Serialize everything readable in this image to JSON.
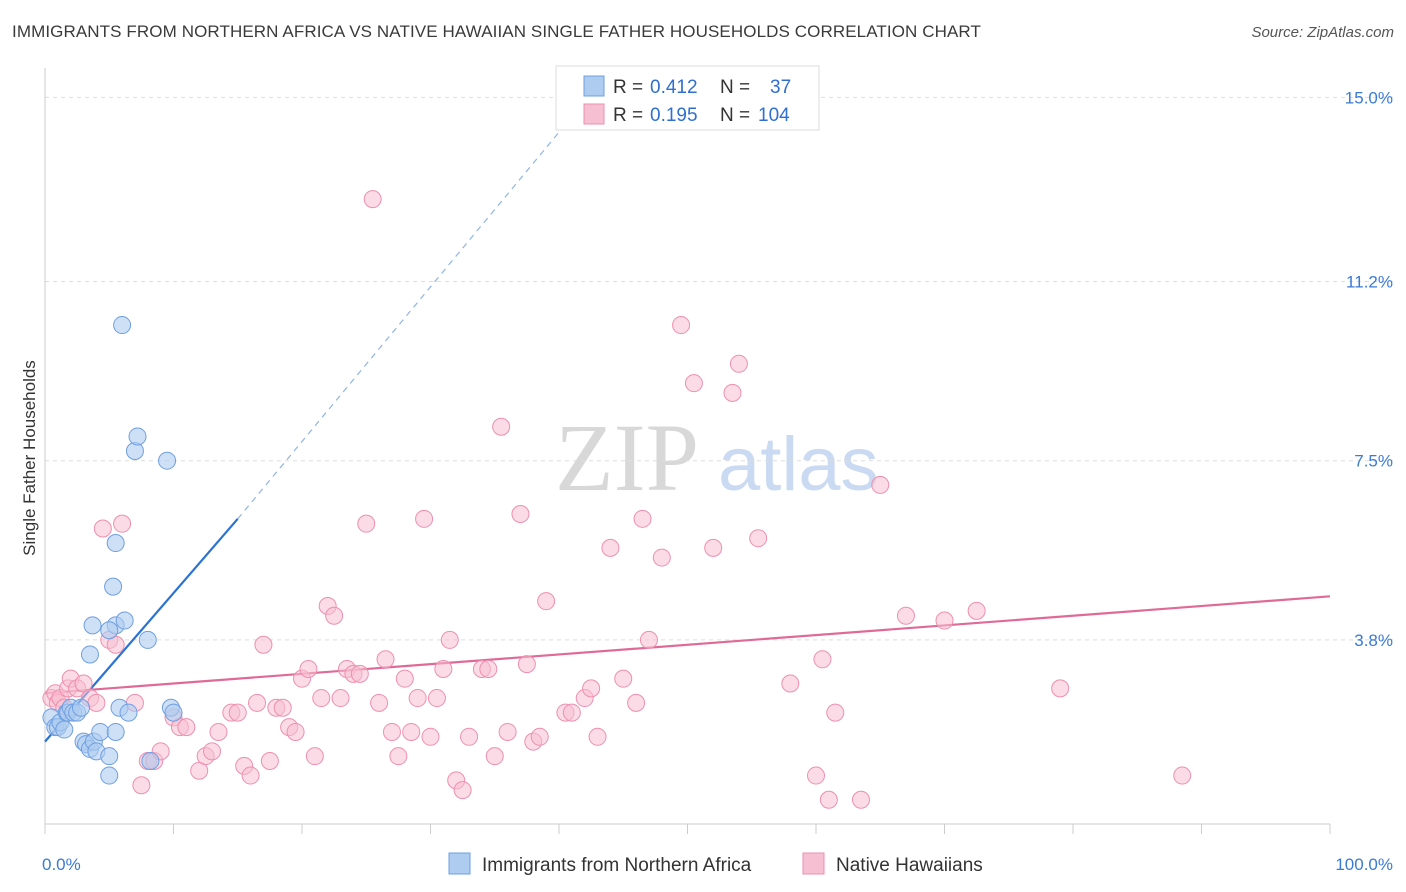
{
  "title": "IMMIGRANTS FROM NORTHERN AFRICA VS NATIVE HAWAIIAN SINGLE FATHER HOUSEHOLDS CORRELATION CHART",
  "source": "Source: ZipAtlas.com",
  "watermark": {
    "zip": "ZIP",
    "atlas": "atlas"
  },
  "colors": {
    "blue_fill": "#aecbf0",
    "blue_stroke": "#6f9fe0",
    "blue_line": "#2a72d4",
    "pink_fill": "#f7bfd2",
    "pink_stroke": "#ee8fb0",
    "pink_line": "#e06a96",
    "grid": "#dddddd",
    "label": "#3a7bd5"
  },
  "legend": {
    "series1": {
      "r_label": "R =",
      "r_value": "0.412",
      "n_label": "N =",
      "n_value": "37"
    },
    "series2": {
      "r_label": "R =",
      "r_value": "0.195",
      "n_label": "N =",
      "n_value": "104"
    }
  },
  "chart_data": {
    "type": "scatter",
    "title": "IMMIGRANTS FROM NORTHERN AFRICA VS NATIVE HAWAIIAN SINGLE FATHER HOUSEHOLDS CORRELATION CHART",
    "xlabel": "",
    "ylabel": "Single Father Households",
    "xlim": [
      0,
      100
    ],
    "ylim": [
      0,
      15.4
    ],
    "x_tick_labels": [
      "0.0%",
      "100.0%"
    ],
    "y_ticks": [
      3.8,
      7.5,
      11.2,
      15.0
    ],
    "y_tick_labels": [
      "3.8%",
      "7.5%",
      "11.2%",
      "15.0%"
    ],
    "series": [
      {
        "name": "Immigrants from Northern Africa",
        "color": "blue",
        "R": 0.412,
        "N": 37,
        "trend": {
          "x0": 0,
          "y0": 1.7,
          "x1": 15,
          "y1": 6.3,
          "dash_to_x": 41,
          "dash_to_y": 14.6
        },
        "points": [
          [
            0.5,
            2.2
          ],
          [
            0.8,
            2.0
          ],
          [
            1.0,
            2.0
          ],
          [
            1.2,
            2.1
          ],
          [
            1.5,
            1.95
          ],
          [
            1.7,
            2.3
          ],
          [
            1.8,
            2.3
          ],
          [
            2.0,
            2.4
          ],
          [
            2.2,
            2.3
          ],
          [
            2.5,
            2.3
          ],
          [
            2.8,
            2.4
          ],
          [
            3.0,
            1.7
          ],
          [
            3.2,
            1.65
          ],
          [
            3.5,
            1.55
          ],
          [
            3.8,
            1.7
          ],
          [
            4.0,
            1.5
          ],
          [
            3.5,
            3.5
          ],
          [
            3.7,
            4.1
          ],
          [
            4.3,
            1.9
          ],
          [
            5.0,
            1.4
          ],
          [
            5.0,
            1.0
          ],
          [
            5.5,
            4.1
          ],
          [
            5.0,
            4.0
          ],
          [
            5.3,
            4.9
          ],
          [
            5.5,
            1.9
          ],
          [
            5.5,
            5.8
          ],
          [
            5.8,
            2.4
          ],
          [
            6.0,
            10.3
          ],
          [
            6.2,
            4.2
          ],
          [
            6.5,
            2.3
          ],
          [
            7.0,
            7.7
          ],
          [
            7.2,
            8.0
          ],
          [
            8.0,
            3.8
          ],
          [
            8.2,
            1.3
          ],
          [
            9.5,
            7.5
          ],
          [
            9.8,
            2.4
          ],
          [
            10.0,
            2.3
          ]
        ]
      },
      {
        "name": "Native Hawaiians",
        "color": "pink",
        "R": 0.195,
        "N": 104,
        "trend": {
          "x0": 0,
          "y0": 2.7,
          "x1": 100,
          "y1": 4.7
        },
        "points": [
          [
            0.5,
            2.6
          ],
          [
            0.8,
            2.7
          ],
          [
            1.0,
            2.5
          ],
          [
            1.2,
            2.6
          ],
          [
            1.5,
            2.4
          ],
          [
            1.8,
            2.8
          ],
          [
            2.0,
            3.0
          ],
          [
            2.5,
            2.8
          ],
          [
            3.0,
            2.9
          ],
          [
            3.5,
            2.6
          ],
          [
            4.0,
            2.5
          ],
          [
            4.5,
            6.1
          ],
          [
            5.0,
            3.8
          ],
          [
            5.5,
            3.7
          ],
          [
            6.0,
            6.2
          ],
          [
            7.0,
            2.5
          ],
          [
            7.5,
            0.8
          ],
          [
            8.0,
            1.3
          ],
          [
            8.5,
            1.3
          ],
          [
            9.0,
            1.5
          ],
          [
            10.0,
            2.2
          ],
          [
            10.5,
            2.0
          ],
          [
            11.0,
            2.0
          ],
          [
            12.0,
            1.1
          ],
          [
            12.5,
            1.4
          ],
          [
            13.0,
            1.5
          ],
          [
            13.5,
            1.9
          ],
          [
            14.5,
            2.3
          ],
          [
            15.0,
            2.3
          ],
          [
            15.5,
            1.2
          ],
          [
            16.0,
            1.0
          ],
          [
            16.5,
            2.5
          ],
          [
            17.0,
            3.7
          ],
          [
            17.5,
            1.3
          ],
          [
            18.0,
            2.4
          ],
          [
            18.5,
            2.4
          ],
          [
            19.0,
            2.0
          ],
          [
            19.5,
            1.9
          ],
          [
            20.0,
            3.0
          ],
          [
            20.5,
            3.2
          ],
          [
            21.0,
            1.4
          ],
          [
            21.5,
            2.6
          ],
          [
            22.0,
            4.5
          ],
          [
            22.5,
            4.3
          ],
          [
            23.0,
            2.6
          ],
          [
            23.5,
            3.2
          ],
          [
            24.0,
            3.1
          ],
          [
            24.5,
            3.1
          ],
          [
            25.0,
            6.2
          ],
          [
            25.5,
            12.9
          ],
          [
            26.0,
            2.5
          ],
          [
            26.5,
            3.4
          ],
          [
            27.0,
            1.9
          ],
          [
            27.5,
            1.4
          ],
          [
            28.0,
            3.0
          ],
          [
            28.5,
            1.9
          ],
          [
            29.0,
            2.6
          ],
          [
            29.5,
            6.3
          ],
          [
            30.0,
            1.8
          ],
          [
            30.5,
            2.6
          ],
          [
            31.0,
            3.2
          ],
          [
            31.5,
            3.8
          ],
          [
            32.0,
            0.9
          ],
          [
            32.5,
            0.7
          ],
          [
            33.0,
            1.8
          ],
          [
            34.0,
            3.2
          ],
          [
            34.5,
            3.2
          ],
          [
            35.0,
            1.4
          ],
          [
            35.5,
            8.2
          ],
          [
            36.0,
            1.9
          ],
          [
            37.0,
            6.4
          ],
          [
            37.5,
            3.3
          ],
          [
            38.0,
            1.7
          ],
          [
            38.5,
            1.8
          ],
          [
            39.0,
            4.6
          ],
          [
            40.5,
            2.3
          ],
          [
            41.0,
            2.3
          ],
          [
            42.0,
            2.6
          ],
          [
            42.5,
            2.8
          ],
          [
            43.0,
            1.8
          ],
          [
            44.0,
            5.7
          ],
          [
            45.0,
            3.0
          ],
          [
            46.0,
            2.5
          ],
          [
            46.5,
            6.3
          ],
          [
            47.0,
            3.8
          ],
          [
            48.0,
            5.5
          ],
          [
            49.5,
            10.3
          ],
          [
            50.5,
            9.1
          ],
          [
            52.0,
            5.7
          ],
          [
            53.5,
            8.9
          ],
          [
            54.0,
            9.5
          ],
          [
            55.5,
            5.9
          ],
          [
            58.0,
            2.9
          ],
          [
            60.0,
            1.0
          ],
          [
            60.5,
            3.4
          ],
          [
            61.0,
            0.5
          ],
          [
            61.5,
            2.3
          ],
          [
            63.5,
            0.5
          ],
          [
            65.0,
            7.0
          ],
          [
            67.0,
            4.3
          ],
          [
            70.0,
            4.2
          ],
          [
            72.5,
            4.4
          ],
          [
            79.0,
            2.8
          ],
          [
            88.5,
            1.0
          ]
        ]
      }
    ],
    "legend_bottom": [
      "Immigrants from Northern Africa",
      "Native Hawaiians"
    ]
  }
}
